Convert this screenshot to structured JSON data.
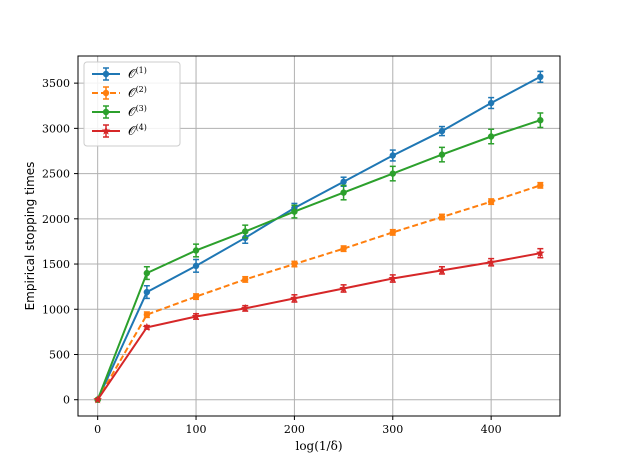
{
  "chart_data": {
    "type": "line",
    "title": "",
    "xlabel": "log(1/δ)",
    "ylabel": "Empirical stopping times",
    "xlim": [
      -20,
      470
    ],
    "ylim": [
      -180,
      3800
    ],
    "xticks": [
      0,
      100,
      200,
      300,
      400
    ],
    "yticks": [
      0,
      500,
      1000,
      1500,
      2000,
      2500,
      3000,
      3500
    ],
    "grid": true,
    "legend_position": "top-left",
    "x": [
      0,
      50,
      100,
      150,
      200,
      250,
      300,
      350,
      400,
      450
    ],
    "series": [
      {
        "name": "𝒪",
        "sup": "(1)",
        "color": "#1f77b4",
        "dash": "solid",
        "marker": "circle",
        "values": [
          0,
          1190,
          1480,
          1790,
          2120,
          2410,
          2700,
          2970,
          3280,
          3570
        ],
        "errors": [
          0,
          70,
          70,
          60,
          50,
          50,
          60,
          50,
          60,
          60
        ]
      },
      {
        "name": "𝒪",
        "sup": "(2)",
        "color": "#ff7f0e",
        "dash": "dashed",
        "marker": "circle",
        "values": [
          0,
          940,
          1140,
          1330,
          1500,
          1670,
          1850,
          2020,
          2190,
          2370
        ],
        "errors": [
          0,
          30,
          30,
          30,
          30,
          30,
          30,
          30,
          30,
          30
        ]
      },
      {
        "name": "𝒪",
        "sup": "(3)",
        "color": "#2ca02c",
        "dash": "solid",
        "marker": "circle",
        "values": [
          0,
          1400,
          1650,
          1860,
          2080,
          2290,
          2500,
          2710,
          2910,
          3090
        ],
        "errors": [
          0,
          70,
          70,
          70,
          70,
          80,
          80,
          80,
          80,
          80
        ]
      },
      {
        "name": "𝒪",
        "sup": "(4)",
        "color": "#d62728",
        "dash": "solid",
        "marker": "star",
        "values": [
          0,
          800,
          920,
          1010,
          1120,
          1230,
          1340,
          1430,
          1520,
          1620
        ],
        "errors": [
          0,
          20,
          30,
          30,
          40,
          40,
          40,
          40,
          40,
          50
        ]
      }
    ]
  }
}
